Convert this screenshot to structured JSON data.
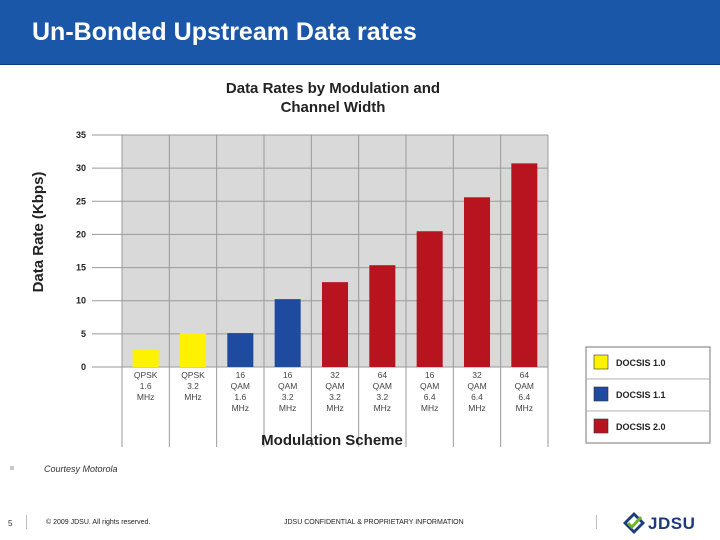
{
  "slide": {
    "title": "Un-Bonded Upstream Data rates",
    "credit": "Courtesy Motorola",
    "page_number": "5",
    "copyright": "© 2009 JDSU. All rights reserved.",
    "confidential": "JDSU CONFIDENTIAL & PROPRIETARY INFORMATION",
    "logo_text": "JDSU"
  },
  "colors": {
    "title_bar": "#1b57a8",
    "plot_bg": "#d9d9d9",
    "docsis_1_0": "#fff200",
    "docsis_1_1": "#1e4aa0",
    "docsis_2_0": "#b8141f"
  },
  "chart_data": {
    "type": "bar",
    "title": "Data Rates by Modulation and Channel Width",
    "title_lines": [
      "Data Rates by Modulation and",
      "Channel Width"
    ],
    "xlabel": "Modulation Scheme",
    "ylabel": "Data Rate (Kbps)",
    "ylim": [
      0,
      35
    ],
    "yticks": [
      0,
      5,
      10,
      15,
      20,
      25,
      30,
      35
    ],
    "grid": true,
    "legend_position": "right",
    "categories": [
      [
        "QPSK",
        "1.6",
        "MHz"
      ],
      [
        "QPSK",
        "3.2",
        "MHz"
      ],
      [
        "16",
        "QAM",
        "1.6",
        "MHz"
      ],
      [
        "16",
        "QAM",
        "3.2",
        "MHz"
      ],
      [
        "32",
        "QAM",
        "3.2",
        "MHz"
      ],
      [
        "64",
        "QAM",
        "3.2",
        "MHz"
      ],
      [
        "16",
        "QAM",
        "6.4",
        "MHz"
      ],
      [
        "32",
        "QAM",
        "6.4",
        "MHz"
      ],
      [
        "64",
        "QAM",
        "6.4",
        "MHz"
      ]
    ],
    "values": [
      2.56,
      5.12,
      5.12,
      10.24,
      12.8,
      15.36,
      20.48,
      25.6,
      30.72
    ],
    "groups": [
      "DOCSIS 1.0",
      "DOCSIS 1.0",
      "DOCSIS 1.1",
      "DOCSIS 1.1",
      "DOCSIS 2.0",
      "DOCSIS 2.0",
      "DOCSIS 2.0",
      "DOCSIS 2.0",
      "DOCSIS 2.0"
    ],
    "legend": [
      {
        "name": "DOCSIS 1.0",
        "color": "#fff200"
      },
      {
        "name": "DOCSIS 1.1",
        "color": "#1e4aa0"
      },
      {
        "name": "DOCSIS 2.0",
        "color": "#b8141f"
      }
    ]
  }
}
